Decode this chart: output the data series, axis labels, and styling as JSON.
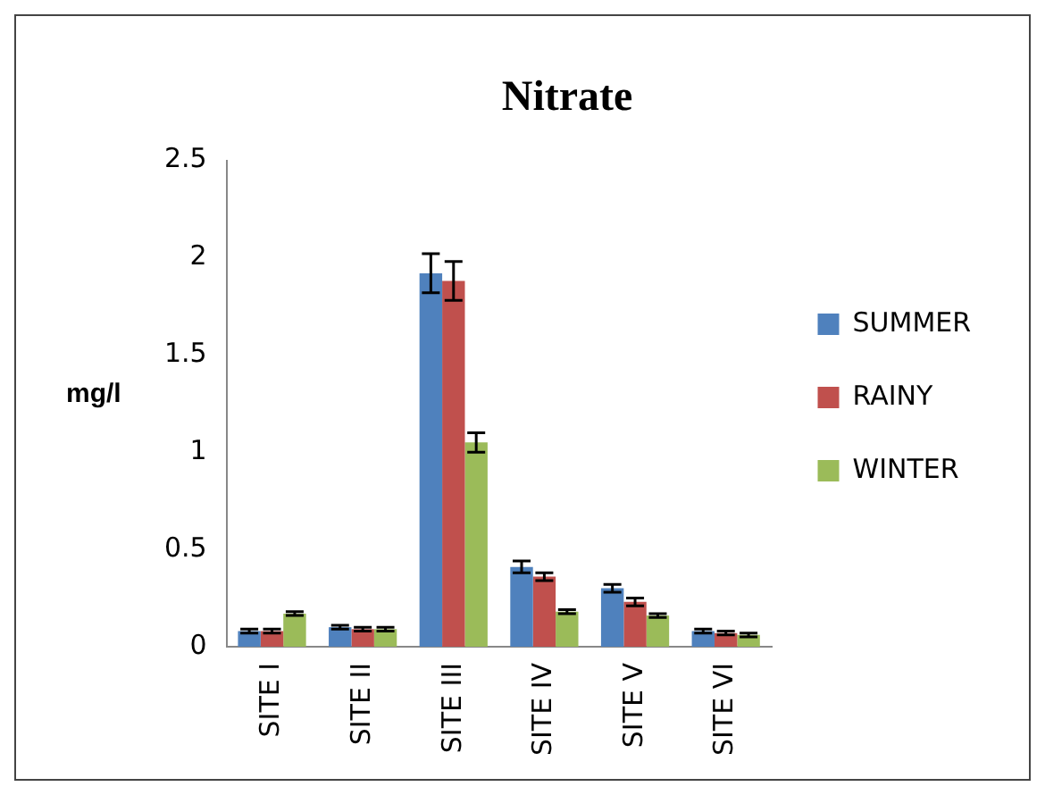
{
  "chart_data": {
    "type": "bar",
    "title": "Nitrate",
    "ylabel": "mg/l",
    "categories": [
      "SITE I",
      "SITE II",
      "SITE III",
      "SITE IV",
      "SITE V",
      "SITE VI"
    ],
    "series": [
      {
        "name": "SUMMER",
        "color": "#4f81bd",
        "values": [
          0.08,
          0.1,
          1.92,
          0.41,
          0.3,
          0.08
        ],
        "errors": [
          0.01,
          0.01,
          0.1,
          0.03,
          0.02,
          0.01
        ]
      },
      {
        "name": "RAINY",
        "color": "#c0504d",
        "values": [
          0.08,
          0.09,
          1.88,
          0.36,
          0.23,
          0.07
        ],
        "errors": [
          0.01,
          0.01,
          0.1,
          0.02,
          0.02,
          0.01
        ]
      },
      {
        "name": "WINTER",
        "color": "#9bbb59",
        "values": [
          0.17,
          0.09,
          1.05,
          0.18,
          0.16,
          0.06
        ],
        "errors": [
          0.01,
          0.01,
          0.05,
          0.01,
          0.01,
          0.01
        ]
      }
    ],
    "ylim": [
      0,
      2.5
    ],
    "yticks": [
      0,
      0.5,
      1,
      1.5,
      2,
      2.5
    ],
    "grid": false,
    "legend": "right"
  }
}
